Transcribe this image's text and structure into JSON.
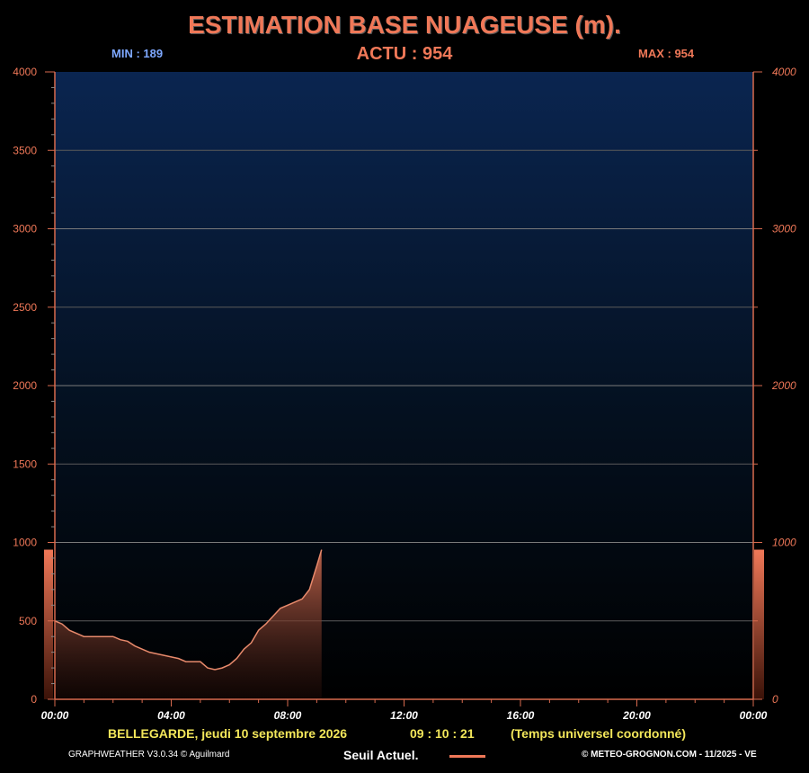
{
  "title": "ESTIMATION BASE NUAGEUSE (m).",
  "stats": {
    "min": "MIN : 189",
    "actu": "ACTU : 954",
    "max": "MAX : 954"
  },
  "info": {
    "location": "BELLEGARDE, jeudi 10 septembre 2026",
    "time": "09 : 10 : 21",
    "timezone": "(Temps universel coordonné)"
  },
  "footer": {
    "version": "GRAPHWEATHER V3.0.34 © Aguilmard",
    "legend": "Seuil Actuel.",
    "copyright": "© METEO-GROGNON.COM - 11/2025 - VE"
  },
  "colors": {
    "accent": "#f07858",
    "min": "#7ea8ff",
    "info": "#f2e65a",
    "bg_top": "#0a2550",
    "bg_bottom": "#000000"
  },
  "chart_data": {
    "type": "area",
    "title": "ESTIMATION BASE NUAGEUSE (m).",
    "xlabel": "",
    "ylabel": "",
    "ylim": [
      0,
      4000
    ],
    "xlim_hours": [
      0,
      24
    ],
    "y_ticks_left": [
      "0",
      "500",
      "1000",
      "1500",
      "2000",
      "2500",
      "3000",
      "3500",
      "4000"
    ],
    "y_ticks_right": [
      "0",
      "1000",
      "2000",
      "3000",
      "4000"
    ],
    "x_ticks": [
      "00:00",
      "04:00",
      "08:00",
      "12:00",
      "16:00",
      "20:00",
      "00:00"
    ],
    "grid": true,
    "current_value": 954,
    "series": [
      {
        "x": [
          "00:00",
          "00:15",
          "00:30",
          "00:45",
          "01:00",
          "01:15",
          "01:30",
          "01:45",
          "02:00",
          "02:15",
          "02:30",
          "02:45",
          "03:00",
          "03:15",
          "03:30",
          "03:45",
          "04:00",
          "04:15",
          "04:30",
          "04:45",
          "05:00",
          "05:15",
          "05:30",
          "05:45",
          "06:00",
          "06:15",
          "06:30",
          "06:45",
          "07:00",
          "07:15",
          "07:30",
          "07:45",
          "08:00",
          "08:15",
          "08:30",
          "08:45",
          "09:00",
          "09:10"
        ],
        "values": [
          500,
          480,
          440,
          420,
          400,
          400,
          400,
          400,
          400,
          380,
          370,
          340,
          320,
          300,
          290,
          280,
          270,
          260,
          240,
          240,
          240,
          200,
          189,
          200,
          220,
          260,
          320,
          360,
          440,
          480,
          530,
          580,
          600,
          620,
          640,
          700,
          850,
          954
        ]
      }
    ]
  }
}
